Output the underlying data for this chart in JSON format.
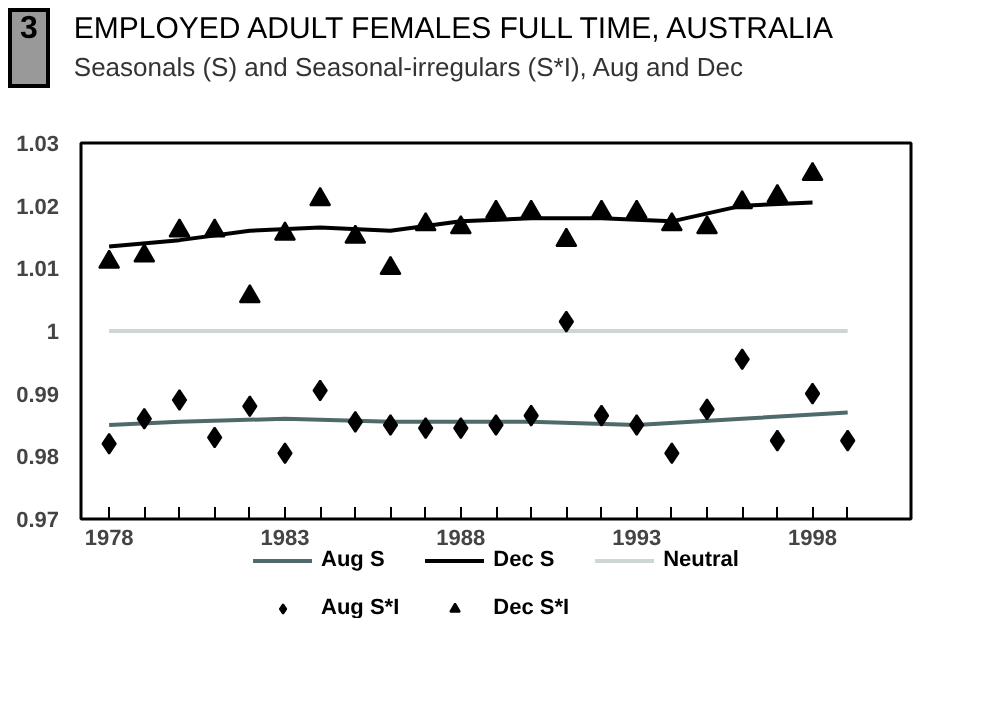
{
  "chart_data": {
    "type": "line",
    "title": "EMPLOYED ADULT FEMALES FULL TIME, AUSTRALIA",
    "subtitle": "Seasonals (S) and Seasonal-irregulars (S*I), Aug and Dec",
    "annotations": [
      "3"
    ],
    "xlim": [
      1977.2,
      2000.8
    ],
    "xticks": [
      1978,
      {
        "value": 1979,
        "label": null
      },
      {
        "value": 1980,
        "label": null
      },
      {
        "value": 1981,
        "label": null
      },
      {
        "value": 1982,
        "label": null
      },
      1983,
      {
        "value": 1984,
        "label": null
      },
      {
        "value": 1985,
        "label": null
      },
      {
        "value": 1986,
        "label": null
      },
      {
        "value": 1987,
        "label": null
      },
      1988,
      {
        "value": 1989,
        "label": null
      },
      {
        "value": 1990,
        "label": null
      },
      {
        "value": 1991,
        "label": null
      },
      {
        "value": 1992,
        "label": null
      },
      1993,
      {
        "value": 1994,
        "label": null
      },
      {
        "value": 1995,
        "label": null
      },
      {
        "value": 1996,
        "label": null
      },
      {
        "value": 1997,
        "label": null
      },
      1998,
      {
        "value": 1999,
        "label": null
      }
    ],
    "ylim": [
      0.97,
      1.03
    ],
    "yticks": [
      0.97,
      0.98,
      0.99,
      1,
      1.01,
      1.02,
      1.03
    ],
    "grid": false,
    "legend": "bottom",
    "series": [
      {
        "name": "Aug S",
        "color": "#4f6a6a",
        "x": [
          1978,
          1980,
          1983,
          1986,
          1990,
          1993,
          1996,
          1999
        ],
        "values": [
          0.985,
          0.9855,
          0.986,
          0.9855,
          0.9855,
          0.985,
          0.986,
          0.987
        ]
      },
      {
        "name": "Dec S",
        "color": "#000000",
        "x": [
          1978,
          1980,
          1982,
          1984,
          1986,
          1988,
          1990,
          1992,
          1994,
          1996,
          1998
        ],
        "values": [
          1.0135,
          1.0145,
          1.016,
          1.0165,
          1.016,
          1.0175,
          1.018,
          1.018,
          1.0175,
          1.02,
          1.0205
        ]
      },
      {
        "name": "Neutral",
        "color": "#cdd5d5",
        "x": [
          1978,
          1999
        ],
        "values": [
          1,
          1
        ]
      },
      {
        "name": "Aug S*I",
        "type": "scatter",
        "marker": "diamond",
        "color": "#000000",
        "x": [
          1978,
          1979,
          1980,
          1981,
          1982,
          1983,
          1984,
          1985,
          1986,
          1987,
          1988,
          1989,
          1990,
          1991,
          1992,
          1993,
          1994,
          1995,
          1996,
          1997,
          1998,
          1999
        ],
        "values": [
          0.982,
          0.986,
          0.989,
          0.983,
          0.988,
          0.9805,
          0.9905,
          0.9855,
          0.985,
          0.9845,
          0.9845,
          0.985,
          0.9865,
          1.0015,
          0.9865,
          0.985,
          0.9805,
          0.9875,
          0.9955,
          0.9825,
          0.99,
          0.9825
        ]
      },
      {
        "name": "Dec S*I",
        "type": "scatter",
        "marker": "triangle",
        "color": "#000000",
        "x": [
          1978,
          1979,
          1980,
          1981,
          1982,
          1983,
          1984,
          1985,
          1986,
          1987,
          1988,
          1989,
          1990,
          1991,
          1992,
          1993,
          1994,
          1995,
          1996,
          1997,
          1998
        ],
        "values": [
          1.011,
          1.012,
          1.016,
          1.016,
          1.0055,
          1.0155,
          1.021,
          1.015,
          1.01,
          1.017,
          1.0165,
          1.019,
          1.019,
          1.0145,
          1.019,
          1.019,
          1.017,
          1.0165,
          1.0205,
          1.0215,
          1.025
        ]
      }
    ]
  }
}
